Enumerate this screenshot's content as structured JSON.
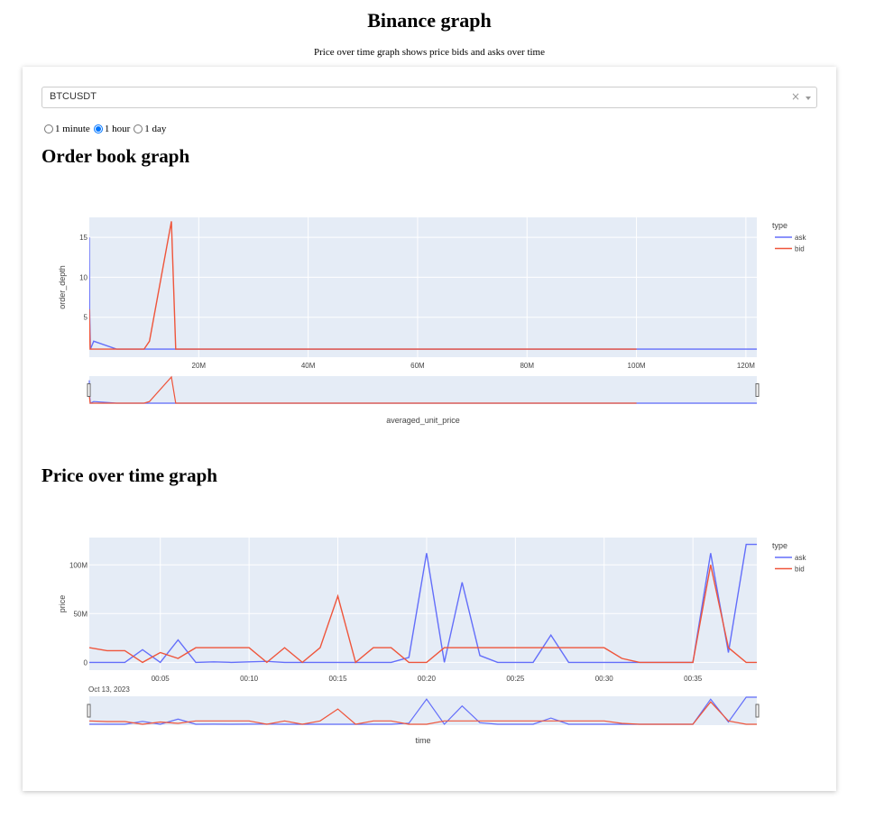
{
  "page": {
    "title": "Binance graph",
    "subtitle": "Price over time graph shows price bids and asks over time"
  },
  "symbol_dropdown": {
    "value": "BTCUSDT",
    "clear_glyph": "×"
  },
  "interval_options": [
    {
      "label": "1 minute",
      "checked": false
    },
    {
      "label": "1 hour",
      "checked": true
    },
    {
      "label": "1 day",
      "checked": false
    }
  ],
  "colors": {
    "ask": "#636efa",
    "bid": "#ef553b",
    "plot_bg": "#e5ecf6"
  },
  "chart_data": [
    {
      "type": "line",
      "section_title": "Order book graph",
      "xlabel": "averaged_unit_price",
      "ylabel": "order_depth",
      "xlim": [
        0,
        122000000
      ],
      "ylim": [
        0,
        17.5
      ],
      "x_ticks": [
        {
          "value": 20000000,
          "label": "20M"
        },
        {
          "value": 40000000,
          "label": "40M"
        },
        {
          "value": 60000000,
          "label": "60M"
        },
        {
          "value": 80000000,
          "label": "80M"
        },
        {
          "value": 100000000,
          "label": "100M"
        },
        {
          "value": 120000000,
          "label": "120M"
        }
      ],
      "y_ticks": [
        {
          "value": 5,
          "label": "5"
        },
        {
          "value": 10,
          "label": "10"
        },
        {
          "value": 15,
          "label": "15"
        }
      ],
      "legend_title": "type",
      "legend_position": "top-right",
      "range_slider": true,
      "series": [
        {
          "name": "ask",
          "x": [
            0,
            50000,
            200000,
            800000,
            5000000,
            10000000,
            30000000,
            60000000,
            90000000,
            100000000,
            110000000,
            122000000
          ],
          "y": [
            15,
            6,
            1,
            2,
            1,
            1,
            1,
            1,
            1,
            1,
            1,
            1
          ]
        },
        {
          "name": "bid",
          "x": [
            0,
            150000,
            300000,
            1000000,
            5000000,
            10000000,
            11000000,
            15000000,
            15400000,
            15800000,
            16000000,
            40000000,
            70000000,
            100000000
          ],
          "y": [
            6,
            1,
            1,
            1,
            1,
            1,
            2,
            17,
            9,
            1,
            1,
            1,
            1,
            1
          ]
        }
      ]
    },
    {
      "type": "line",
      "section_title": "Price over time graph",
      "xlabel": "time",
      "ylabel": "price",
      "xlim": [
        1,
        38.6
      ],
      "ylim": [
        -8000000,
        128000000
      ],
      "x_ticks": [
        {
          "value": 5,
          "label": "00:05"
        },
        {
          "value": 10,
          "label": "00:10"
        },
        {
          "value": 15,
          "label": "00:15"
        },
        {
          "value": 20,
          "label": "00:20"
        },
        {
          "value": 25,
          "label": "00:25"
        },
        {
          "value": 30,
          "label": "00:30"
        },
        {
          "value": 35,
          "label": "00:35"
        }
      ],
      "x_date_label": "Oct 13, 2023",
      "y_ticks": [
        {
          "value": 0,
          "label": "0"
        },
        {
          "value": 50000000,
          "label": "50M"
        },
        {
          "value": 100000000,
          "label": "100M"
        }
      ],
      "legend_title": "type",
      "legend_position": "top-right",
      "range_slider": true,
      "series": [
        {
          "name": "ask",
          "x": [
            1,
            2,
            3,
            4,
            5,
            6,
            7,
            8,
            9,
            10,
            11,
            12,
            13,
            14,
            15,
            16,
            17,
            18,
            19,
            20,
            21,
            22,
            23,
            24,
            25,
            26,
            27,
            28,
            29,
            30,
            31,
            32,
            33,
            34,
            35,
            36,
            37,
            38,
            38.6
          ],
          "y": [
            0,
            0,
            0,
            13000000,
            0,
            23000000,
            0,
            500000,
            0,
            500000,
            1000000,
            0,
            0,
            0,
            0,
            0,
            0,
            0,
            5000000,
            112000000,
            0,
            82000000,
            7000000,
            0,
            0,
            0,
            28000000,
            0,
            0,
            0,
            0,
            0,
            0,
            0,
            0,
            112000000,
            10000000,
            121000000,
            121000000
          ]
        },
        {
          "name": "bid",
          "x": [
            1,
            2,
            3,
            4,
            5,
            6,
            7,
            8,
            9,
            10,
            11,
            12,
            13,
            14,
            15,
            16,
            17,
            18,
            19,
            20,
            21,
            22,
            23,
            24,
            25,
            26,
            27,
            28,
            29,
            30,
            31,
            32,
            33,
            34,
            35,
            36,
            37,
            38,
            38.6
          ],
          "y": [
            15000000,
            12000000,
            12000000,
            0,
            10000000,
            4000000,
            15000000,
            15000000,
            15000000,
            15000000,
            0,
            15000000,
            0,
            15000000,
            68000000,
            0,
            15000000,
            15000000,
            0,
            0,
            15000000,
            15000000,
            15000000,
            15000000,
            15000000,
            15000000,
            15000000,
            15000000,
            15000000,
            15000000,
            4000000,
            0,
            0,
            0,
            0,
            100000000,
            15000000,
            0,
            0
          ]
        }
      ]
    }
  ]
}
